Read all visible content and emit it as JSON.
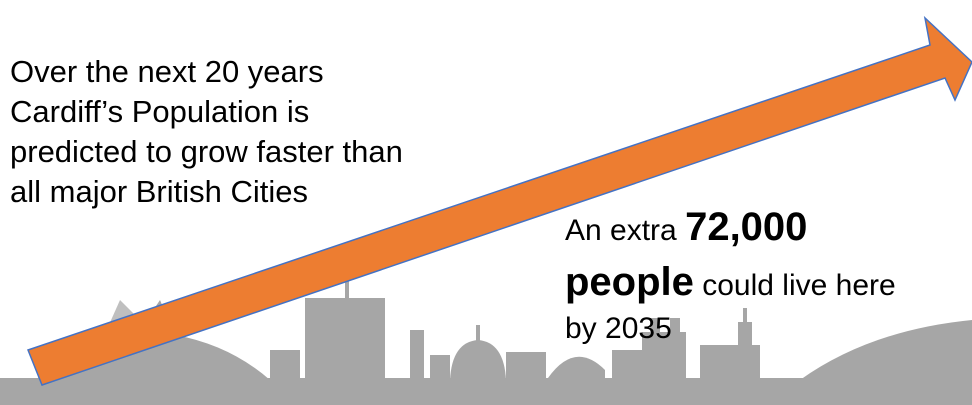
{
  "headline": {
    "lines": [
      "Over the next 20 years",
      "Cardiff’s Population is",
      "predicted to grow faster than",
      "all major British Cities"
    ]
  },
  "callout": {
    "prefix": "An extra",
    "number": "72,000",
    "noun": "people",
    "rest": "could live here",
    "suffix": "by 2035"
  }
}
